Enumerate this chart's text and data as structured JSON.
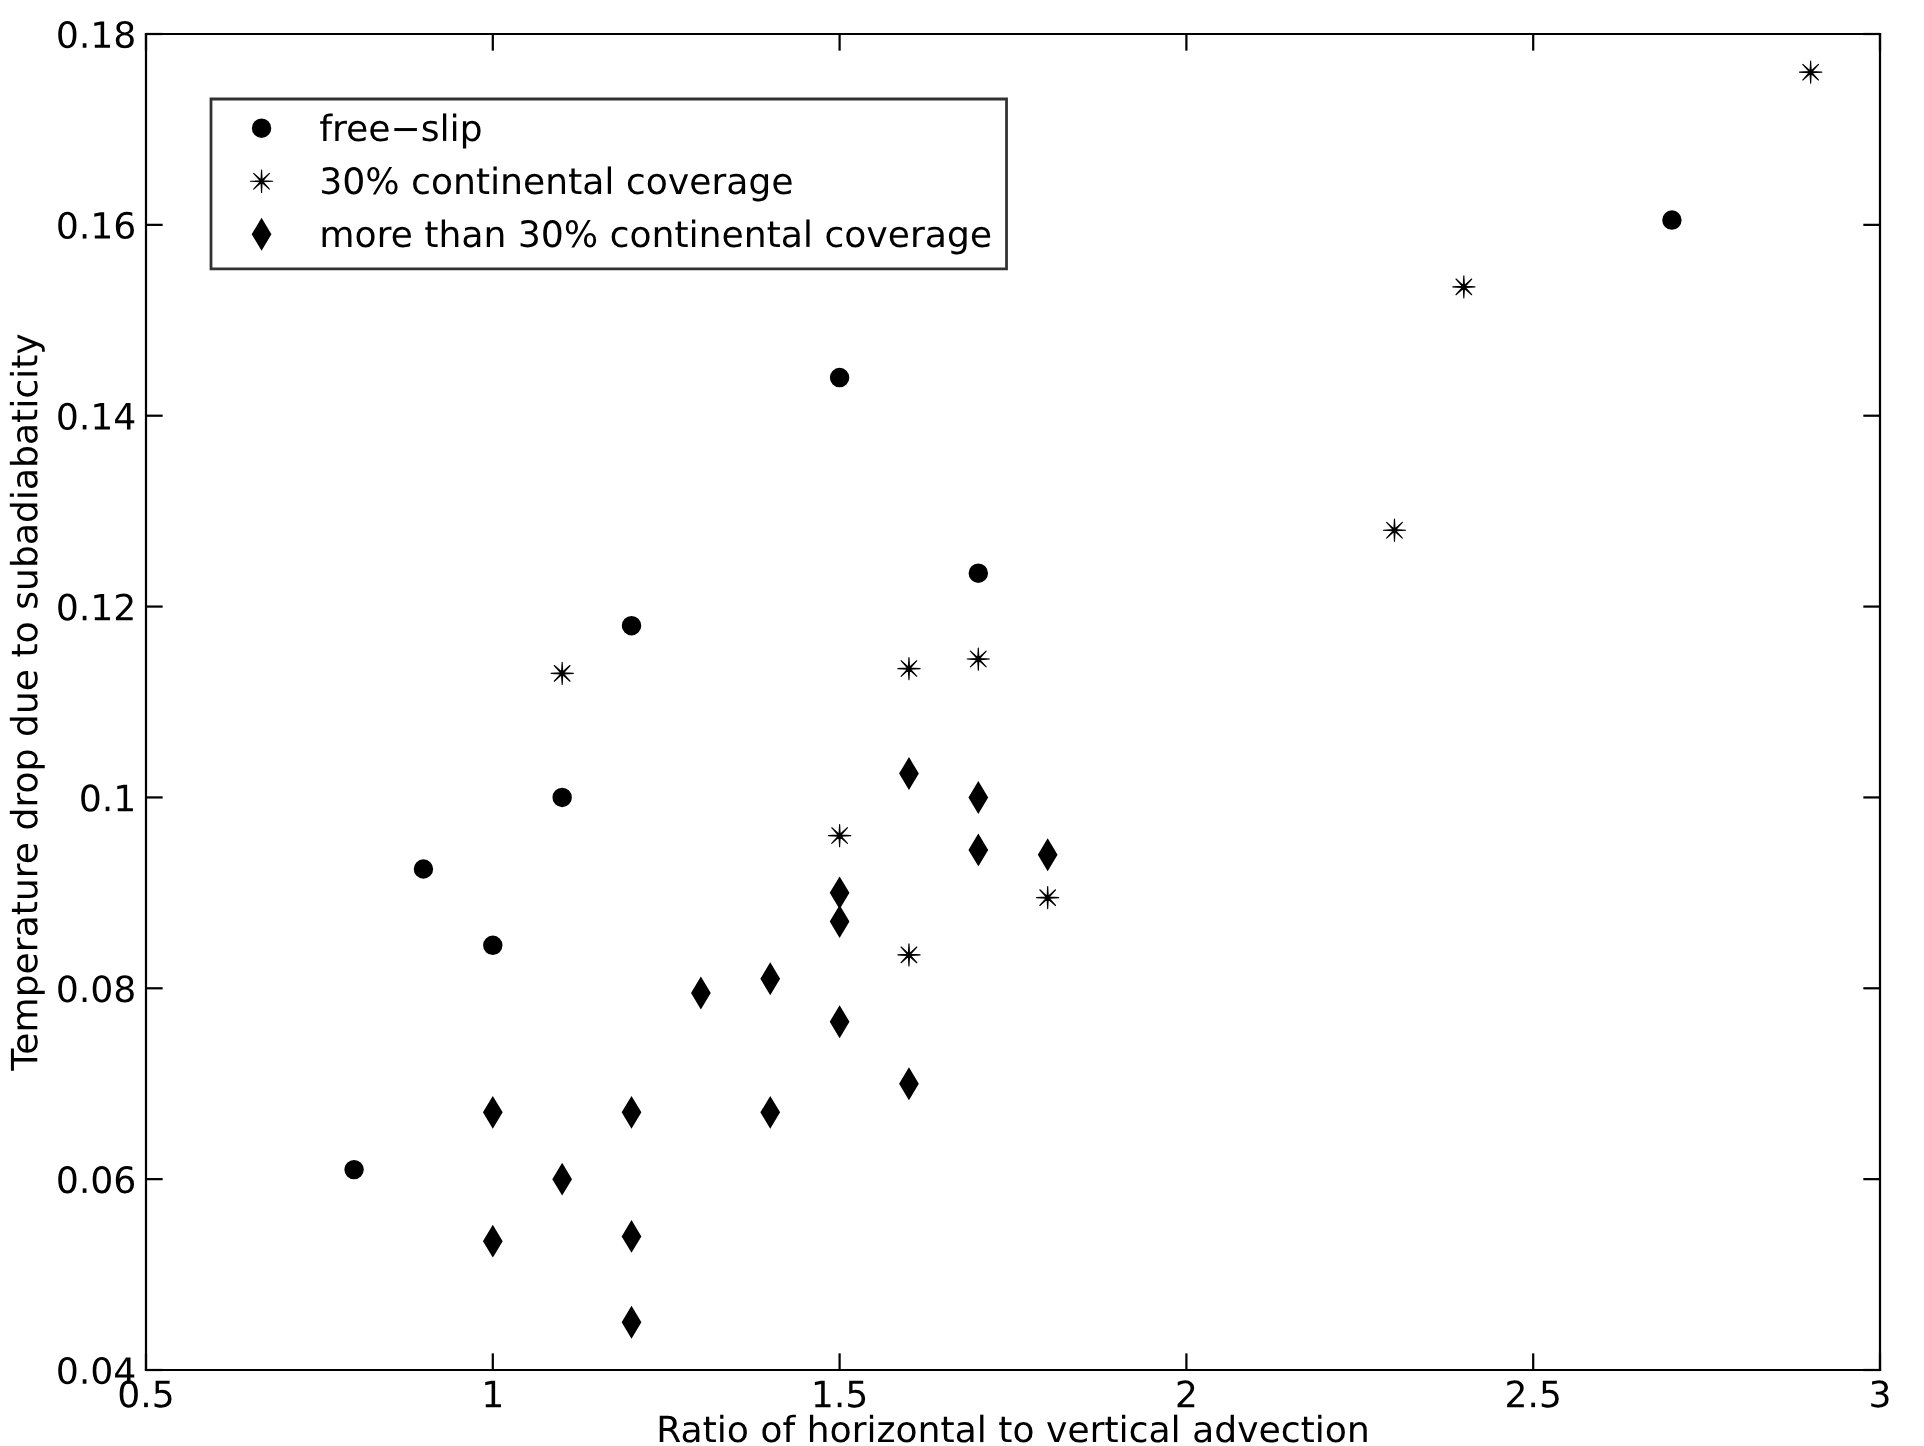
{
  "chart_data": {
    "type": "scatter",
    "xlabel": "Ratio of horizontal to vertical advection",
    "ylabel": "Temperature drop due to subadiabaticity",
    "xlim": [
      0.5,
      3
    ],
    "ylim": [
      0.04,
      0.18
    ],
    "xticks": [
      0.5,
      1,
      1.5,
      2,
      2.5,
      3
    ],
    "yticks": [
      0.04,
      0.06,
      0.08,
      {
        "value": 0.1,
        "label": "0.1"
      },
      0.12,
      0.14,
      0.16,
      0.18
    ],
    "grid": false,
    "legend": "top left",
    "series": [
      {
        "name": "free−slip",
        "color": "#000000",
        "marker": "circle",
        "x": [
          0.8,
          0.9,
          1.0,
          1.1,
          1.2,
          1.5,
          1.7,
          2.7
        ],
        "values": [
          0.061,
          0.0925,
          0.0845,
          0.1,
          0.118,
          0.144,
          0.1235,
          0.1605
        ]
      },
      {
        "name": "30% continental coverage",
        "color": "#000000",
        "marker": "star",
        "x": [
          1.1,
          1.5,
          1.6,
          1.6,
          1.7,
          1.8,
          2.3,
          2.4,
          2.9
        ],
        "values": [
          0.113,
          0.096,
          0.1135,
          0.0835,
          0.1145,
          0.0895,
          0.128,
          0.1535,
          0.176
        ]
      },
      {
        "name": "more than 30% continental coverage",
        "color": "#000000",
        "marker": "diamond",
        "x": [
          1.0,
          1.0,
          1.1,
          1.2,
          1.2,
          1.2,
          1.3,
          1.4,
          1.4,
          1.5,
          1.5,
          1.5,
          1.6,
          1.6,
          1.7,
          1.7,
          1.8
        ],
        "values": [
          0.067,
          0.0535,
          0.06,
          0.067,
          0.054,
          0.045,
          0.0795,
          0.081,
          0.067,
          0.09,
          0.087,
          0.0765,
          0.1025,
          0.07,
          0.1,
          0.0945,
          0.094
        ]
      }
    ]
  }
}
